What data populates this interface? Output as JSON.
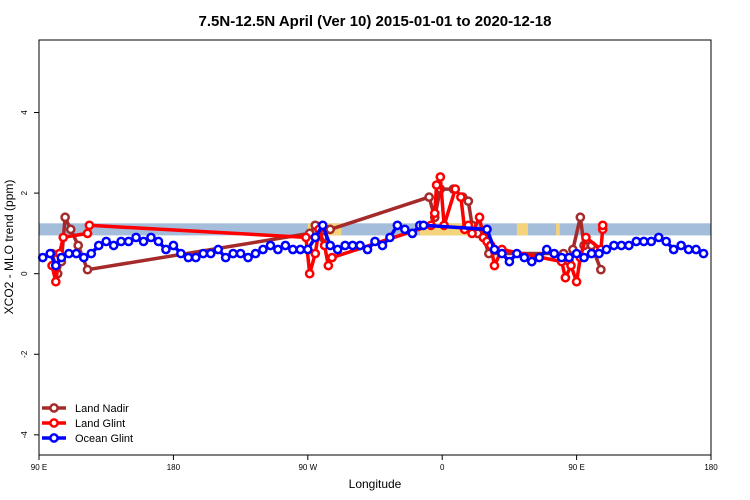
{
  "chart_data": {
    "type": "line",
    "title": "7.5N-12.5N April (Ver 10)   2015-01-01 to 2020-12-18",
    "xlabel": "Longitude",
    "ylabel": "XCO2 - MLO trend (ppm)",
    "xlim": [
      -90,
      270
    ],
    "ylim": [
      -4.5,
      5.8
    ],
    "x_ticks": [
      {
        "value": -90,
        "label": "90 E"
      },
      {
        "value": -18,
        "label": "180"
      },
      {
        "value": 54,
        "label": "90 W"
      },
      {
        "value": 126,
        "label": "0"
      },
      {
        "value": 198,
        "label": "90 E"
      },
      {
        "value": 270,
        "label": "180"
      }
    ],
    "y_ticks": [
      {
        "value": -4,
        "label": "-4"
      },
      {
        "value": -2,
        "label": "-2"
      },
      {
        "value": 0,
        "label": "0"
      },
      {
        "value": 2,
        "label": "2"
      },
      {
        "value": 4,
        "label": "4"
      }
    ],
    "legend": {
      "position": "bottom-left"
    },
    "land_band": {
      "y_range": [
        0.95,
        1.25
      ],
      "ocean_color": "#a3bddb",
      "land_color": "#f5d37a"
    },
    "land_regions": [
      [
        54,
        56
      ],
      [
        64,
        72
      ],
      [
        114,
        140
      ],
      [
        166,
        172
      ],
      [
        187,
        189
      ]
    ],
    "series": [
      {
        "name": "Land Nadir",
        "color": "#a52a2a",
        "x": [
          -83,
          -80,
          -78,
          -76,
          -73,
          -69,
          -64,
          55,
          58,
          62,
          66,
          119,
          122,
          125,
          132,
          137,
          140,
          142,
          145,
          148,
          151,
          191,
          194,
          196,
          200,
          202,
          206,
          211
        ],
        "y": [
          0.5,
          0.0,
          0.3,
          1.4,
          1.1,
          0.7,
          0.1,
          1.0,
          1.2,
          0.9,
          1.1,
          1.9,
          1.4,
          2.1,
          2.1,
          1.9,
          1.8,
          1.2,
          1.0,
          0.9,
          0.5,
          0.5,
          0.3,
          0.6,
          1.4,
          0.7,
          0.7,
          0.1
        ]
      },
      {
        "name": "Land Glint",
        "color": "#ff0000",
        "x": [
          -83,
          -81,
          -79,
          -77,
          -64,
          -63,
          53,
          55,
          58,
          60,
          63,
          65,
          67,
          120,
          122,
          123,
          125,
          127,
          133,
          136,
          138,
          140,
          142,
          146,
          148,
          150,
          152,
          154,
          158,
          190,
          192,
          195,
          198,
          200,
          203,
          211,
          212,
          212
        ],
        "y": [
          0.2,
          -0.2,
          0.5,
          0.9,
          1.0,
          1.2,
          0.9,
          0.0,
          0.5,
          1.1,
          0.7,
          0.2,
          0.4,
          1.2,
          1.5,
          2.2,
          2.4,
          1.2,
          2.1,
          1.9,
          1.1,
          1.2,
          1.0,
          1.4,
          0.9,
          0.8,
          0.7,
          0.2,
          0.6,
          0.3,
          -0.1,
          0.2,
          -0.2,
          0.4,
          0.9,
          0.6,
          1.1,
          1.2
        ]
      },
      {
        "name": "Ocean Glint",
        "color": "#0000ff",
        "x": [
          -88,
          -84,
          -81,
          -78,
          -74,
          -70,
          -66,
          -62,
          -58,
          -54,
          -50,
          -46,
          -42,
          -38,
          -34,
          -30,
          -26,
          -22,
          -18,
          -14,
          -10,
          -6,
          -2,
          2,
          6,
          10,
          14,
          18,
          22,
          26,
          30,
          34,
          38,
          42,
          46,
          50,
          54,
          58,
          62,
          66,
          70,
          74,
          78,
          82,
          86,
          90,
          94,
          98,
          102,
          106,
          110,
          114,
          116,
          150,
          154,
          158,
          162,
          166,
          170,
          174,
          178,
          182,
          186,
          190,
          194,
          198,
          202,
          206,
          210,
          214,
          218,
          222,
          226,
          230,
          234,
          238,
          242,
          246,
          250,
          254,
          258,
          262,
          266
        ],
        "y": [
          0.4,
          0.5,
          0.2,
          0.4,
          0.5,
          0.5,
          0.4,
          0.5,
          0.7,
          0.8,
          0.7,
          0.8,
          0.8,
          0.9,
          0.8,
          0.9,
          0.8,
          0.6,
          0.7,
          0.5,
          0.4,
          0.4,
          0.5,
          0.5,
          0.6,
          0.4,
          0.5,
          0.5,
          0.4,
          0.5,
          0.6,
          0.7,
          0.6,
          0.7,
          0.6,
          0.6,
          0.6,
          0.9,
          1.2,
          0.7,
          0.6,
          0.7,
          0.7,
          0.7,
          0.6,
          0.8,
          0.7,
          0.9,
          1.2,
          1.1,
          1.0,
          1.2,
          1.2,
          1.1,
          0.6,
          0.5,
          0.3,
          0.5,
          0.4,
          0.3,
          0.4,
          0.6,
          0.5,
          0.4,
          0.4,
          0.5,
          0.4,
          0.5,
          0.5,
          0.6,
          0.7,
          0.7,
          0.7,
          0.8,
          0.8,
          0.8,
          0.9,
          0.8,
          0.6,
          0.7,
          0.6,
          0.6,
          0.5
        ]
      }
    ]
  }
}
